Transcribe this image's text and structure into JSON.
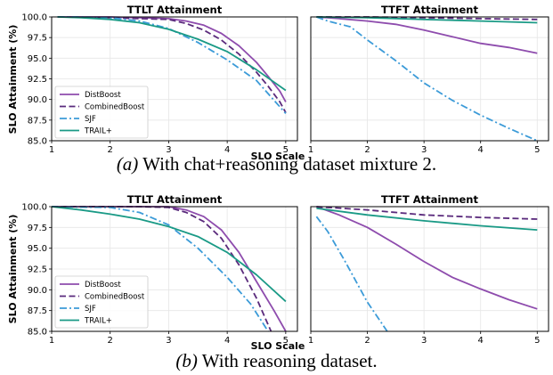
{
  "figure": {
    "captions": [
      {
        "lead": "(a)",
        "text": " With chat+reasoning dataset mixture 2."
      },
      {
        "lead": "(b)",
        "text": " With reasoning dataset."
      }
    ],
    "ylabel": "SLO Attainment (%)",
    "xlabel": "SLO Scale"
  },
  "colors": {
    "DistBoost": "#8e4cad",
    "CombinedBoost": "#5a2a7c",
    "SJF": "#3c9bd8",
    "TRAIL+": "#1a9a86"
  },
  "chart_data": [
    {
      "type": "line",
      "title": "TTLT Attainment",
      "group": "(a)",
      "xlim": [
        1,
        5.2
      ],
      "ylim": [
        85,
        100
      ],
      "xticks": [
        1,
        2,
        3,
        4,
        5
      ],
      "yticks": [
        "85.0",
        "87.5",
        "90.0",
        "92.5",
        "95.0",
        "97.5",
        "100.0"
      ],
      "legend": "lower-left",
      "grid": true,
      "series": [
        {
          "name": "DistBoost",
          "style": "solid",
          "x": [
            1.1,
            2.0,
            2.5,
            3.0,
            3.3,
            3.6,
            3.9,
            4.2,
            4.5,
            4.7,
            4.9,
            5.0
          ],
          "y": [
            100,
            100,
            99.9,
            99.8,
            99.5,
            99.0,
            98.0,
            96.5,
            94.5,
            92.8,
            91.0,
            89.7
          ]
        },
        {
          "name": "CombinedBoost",
          "style": "dashed",
          "x": [
            1.1,
            2.0,
            2.5,
            3.0,
            3.3,
            3.6,
            3.9,
            4.2,
            4.5,
            4.7,
            4.9,
            5.0
          ],
          "y": [
            100,
            99.9,
            99.8,
            99.7,
            99.2,
            98.4,
            97.2,
            95.5,
            93.3,
            91.6,
            89.7,
            88.4
          ]
        },
        {
          "name": "SJF",
          "style": "dashdot",
          "x": [
            1.1,
            1.5,
            2.0,
            2.5,
            3.0,
            3.5,
            4.0,
            4.5,
            5.0
          ],
          "y": [
            100,
            100,
            99.9,
            99.5,
            98.6,
            96.9,
            94.8,
            92.3,
            88.3
          ]
        },
        {
          "name": "TRAIL+",
          "style": "solid",
          "x": [
            1.1,
            1.5,
            2.0,
            2.5,
            3.0,
            3.5,
            4.0,
            4.5,
            5.0
          ],
          "y": [
            100,
            99.9,
            99.7,
            99.3,
            98.5,
            97.3,
            95.8,
            93.6,
            91.1
          ]
        }
      ]
    },
    {
      "type": "line",
      "title": "TTFT Attainment",
      "group": "(a)",
      "xlim": [
        1,
        5.2
      ],
      "ylim": [
        85,
        100
      ],
      "xticks": [
        1,
        2,
        3,
        4,
        5
      ],
      "grid": true,
      "series": [
        {
          "name": "DistBoost",
          "style": "solid",
          "x": [
            1.1,
            1.5,
            2.0,
            2.5,
            3.0,
            3.5,
            4.0,
            4.5,
            5.0
          ],
          "y": [
            100,
            99.8,
            99.5,
            99.1,
            98.4,
            97.6,
            96.8,
            96.3,
            95.6
          ]
        },
        {
          "name": "CombinedBoost",
          "style": "dashed",
          "x": [
            1.1,
            2.0,
            3.0,
            4.0,
            5.0
          ],
          "y": [
            100,
            100,
            99.9,
            99.8,
            99.7
          ]
        },
        {
          "name": "SJF",
          "style": "dashdot",
          "x": [
            1.1,
            1.3,
            1.7,
            2.0,
            2.5,
            3.0,
            3.5,
            4.0,
            4.5,
            5.0
          ],
          "y": [
            100,
            99.5,
            98.8,
            97.2,
            94.7,
            92.0,
            89.9,
            88.1,
            86.5,
            85.0
          ]
        },
        {
          "name": "TRAIL+",
          "style": "solid",
          "x": [
            1.1,
            2.0,
            3.0,
            4.0,
            5.0
          ],
          "y": [
            100,
            99.9,
            99.7,
            99.5,
            99.3
          ]
        }
      ]
    },
    {
      "type": "line",
      "title": "TTLT Attainment",
      "group": "(b)",
      "xlim": [
        1,
        5.2
      ],
      "ylim": [
        85,
        100
      ],
      "xticks": [
        1,
        2,
        3,
        4,
        5
      ],
      "yticks": [
        "85.0",
        "87.5",
        "90.0",
        "92.5",
        "95.0",
        "97.5",
        "100.0"
      ],
      "legend": "lower-left",
      "grid": true,
      "series": [
        {
          "name": "DistBoost",
          "style": "solid",
          "x": [
            1.0,
            2.5,
            3.0,
            3.3,
            3.6,
            3.9,
            4.2,
            4.5,
            4.8,
            5.0
          ],
          "y": [
            100,
            100,
            100,
            99.6,
            98.8,
            97.2,
            94.5,
            91.0,
            87.5,
            85.0
          ]
        },
        {
          "name": "CombinedBoost",
          "style": "dashed",
          "x": [
            1.0,
            2.5,
            3.0,
            3.3,
            3.6,
            3.9,
            4.2,
            4.5,
            4.75
          ],
          "y": [
            100,
            100,
            99.9,
            99.3,
            98.2,
            96.2,
            93.0,
            89.0,
            85.0
          ]
        },
        {
          "name": "SJF",
          "style": "dashdot",
          "x": [
            1.0,
            2.0,
            2.5,
            3.0,
            3.5,
            4.0,
            4.4,
            4.7
          ],
          "y": [
            100,
            99.9,
            99.3,
            97.8,
            95.0,
            91.5,
            88.3,
            85.0
          ]
        },
        {
          "name": "TRAIL+",
          "style": "solid",
          "x": [
            1.0,
            1.5,
            2.0,
            2.5,
            3.0,
            3.5,
            4.0,
            4.5,
            5.0
          ],
          "y": [
            100,
            99.6,
            99.1,
            98.5,
            97.6,
            96.4,
            94.5,
            91.8,
            88.6
          ]
        }
      ]
    },
    {
      "type": "line",
      "title": "TTFT Attainment",
      "group": "(b)",
      "xlim": [
        1,
        5.2
      ],
      "ylim": [
        85,
        100
      ],
      "xticks": [
        1,
        2,
        3,
        4,
        5
      ],
      "grid": true,
      "series": [
        {
          "name": "DistBoost",
          "style": "solid",
          "x": [
            1.1,
            1.5,
            2.0,
            2.5,
            3.0,
            3.5,
            4.0,
            4.5,
            5.0
          ],
          "y": [
            100,
            99.0,
            97.5,
            95.5,
            93.4,
            91.5,
            90.1,
            88.8,
            87.7
          ]
        },
        {
          "name": "CombinedBoost",
          "style": "dashed",
          "x": [
            1.1,
            2.0,
            3.0,
            4.0,
            5.0
          ],
          "y": [
            100,
            99.6,
            99.0,
            98.7,
            98.5
          ]
        },
        {
          "name": "SJF",
          "style": "dashdot",
          "x": [
            1.1,
            1.3,
            1.6,
            2.0,
            2.35
          ],
          "y": [
            98.8,
            97.0,
            93.5,
            88.5,
            85.0
          ]
        },
        {
          "name": "TRAIL+",
          "style": "solid",
          "x": [
            1.1,
            2.0,
            3.0,
            4.0,
            5.0
          ],
          "y": [
            99.8,
            99.0,
            98.3,
            97.7,
            97.2
          ]
        }
      ]
    }
  ]
}
